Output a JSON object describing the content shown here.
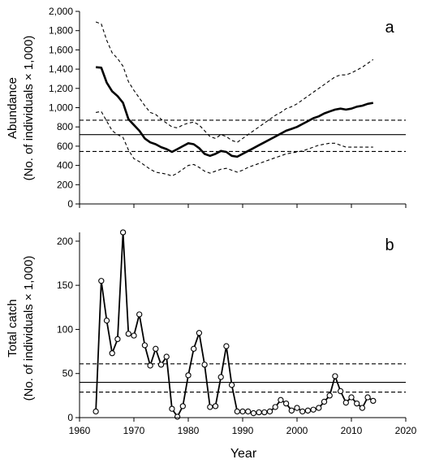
{
  "chart_data": [
    {
      "type": "line",
      "panel_label": "a",
      "ylabel_line1": "Abundance",
      "ylabel_line2": "(No. of individuals × 1,000)",
      "xlim": [
        1960,
        2020
      ],
      "ylim": [
        0,
        2000
      ],
      "yticks": [
        "0",
        "200",
        "400",
        "600",
        "800",
        "1,000",
        "1,200",
        "1,400",
        "1,600",
        "1,800",
        "2,000"
      ],
      "ytick_values": [
        0,
        200,
        400,
        600,
        800,
        1000,
        1200,
        1400,
        1600,
        1800,
        2000
      ],
      "reference_lines": [
        {
          "value": 870,
          "style": "dashed"
        },
        {
          "value": 720,
          "style": "solid"
        },
        {
          "value": 545,
          "style": "dashed"
        }
      ],
      "series": [
        {
          "style": "solid-bold",
          "x": [
            1963,
            1964,
            1965,
            1966,
            1967,
            1968,
            1969,
            1970,
            1971,
            1972,
            1973,
            1974,
            1975,
            1976,
            1977,
            1978,
            1979,
            1980,
            1981,
            1982,
            1983,
            1984,
            1985,
            1986,
            1987,
            1988,
            1989,
            1990,
            1991,
            1992,
            1993,
            1994,
            1995,
            1996,
            1997,
            1998,
            1999,
            2000,
            2001,
            2002,
            2003,
            2004,
            2005,
            2006,
            2007,
            2008,
            2009,
            2010,
            2011,
            2012,
            2013,
            2014
          ],
          "values": [
            1420,
            1415,
            1260,
            1170,
            1120,
            1050,
            880,
            820,
            760,
            680,
            640,
            620,
            590,
            570,
            540,
            570,
            600,
            630,
            620,
            580,
            520,
            500,
            520,
            550,
            540,
            500,
            490,
            520,
            550,
            580,
            610,
            640,
            670,
            700,
            730,
            760,
            780,
            800,
            830,
            860,
            890,
            910,
            940,
            960,
            980,
            990,
            980,
            990,
            1010,
            1020,
            1040,
            1050
          ]
        },
        {
          "style": "dashed-upper",
          "x": [
            1963,
            1964,
            1965,
            1966,
            1967,
            1968,
            1969,
            1970,
            1971,
            1972,
            1973,
            1974,
            1975,
            1976,
            1977,
            1978,
            1979,
            1980,
            1981,
            1982,
            1983,
            1984,
            1985,
            1986,
            1987,
            1988,
            1989,
            1990,
            1991,
            1992,
            1993,
            1994,
            1995,
            1996,
            1997,
            1998,
            1999,
            2000,
            2001,
            2002,
            2003,
            2004,
            2005,
            2006,
            2007,
            2008,
            2009,
            2010,
            2011,
            2012,
            2013,
            2014
          ],
          "values": [
            1890,
            1870,
            1700,
            1570,
            1510,
            1430,
            1270,
            1180,
            1100,
            1020,
            950,
            930,
            880,
            840,
            800,
            790,
            820,
            840,
            850,
            820,
            760,
            700,
            680,
            720,
            700,
            660,
            640,
            680,
            720,
            760,
            800,
            840,
            880,
            920,
            950,
            990,
            1010,
            1040,
            1080,
            1120,
            1160,
            1200,
            1240,
            1280,
            1320,
            1340,
            1340,
            1360,
            1390,
            1420,
            1460,
            1500
          ]
        },
        {
          "style": "dashed-lower",
          "x": [
            1963,
            1964,
            1965,
            1966,
            1967,
            1968,
            1969,
            1970,
            1971,
            1972,
            1973,
            1974,
            1975,
            1976,
            1977,
            1978,
            1979,
            1980,
            1981,
            1982,
            1983,
            1984,
            1985,
            1986,
            1987,
            1988,
            1989,
            1990,
            1991,
            1992,
            1993,
            1994,
            1995,
            1996,
            1997,
            1998,
            1999,
            2000,
            2001,
            2002,
            2003,
            2004,
            2005,
            2006,
            2007,
            2008,
            2009,
            2010,
            2011,
            2012,
            2013,
            2014
          ],
          "values": [
            950,
            960,
            860,
            760,
            720,
            690,
            560,
            470,
            440,
            400,
            360,
            330,
            320,
            310,
            290,
            320,
            360,
            400,
            410,
            380,
            340,
            320,
            340,
            360,
            370,
            350,
            330,
            350,
            380,
            400,
            420,
            440,
            460,
            480,
            500,
            520,
            530,
            540,
            550,
            570,
            590,
            610,
            620,
            630,
            630,
            610,
            590,
            590,
            590,
            590,
            590,
            590
          ]
        }
      ]
    },
    {
      "type": "line",
      "panel_label": "b",
      "ylabel_line1": "Total catch",
      "ylabel_line2": "(No. of individuals × 1,000)",
      "xlabel": "Year",
      "xlim": [
        1960,
        2020
      ],
      "ylim": [
        0,
        210
      ],
      "xticks": [
        "1960",
        "1970",
        "1980",
        "1990",
        "2000",
        "2010",
        "2020"
      ],
      "xtick_values": [
        1960,
        1970,
        1980,
        1990,
        2000,
        2010,
        2020
      ],
      "yticks": [
        "0",
        "50",
        "100",
        "150",
        "200"
      ],
      "ytick_values": [
        0,
        50,
        100,
        150,
        200
      ],
      "reference_lines": [
        {
          "value": 61,
          "style": "dashed"
        },
        {
          "value": 40,
          "style": "solid"
        },
        {
          "value": 29,
          "style": "dashed"
        }
      ],
      "series": [
        {
          "style": "solid-markers",
          "x": [
            1963,
            1964,
            1965,
            1966,
            1967,
            1968,
            1969,
            1970,
            1971,
            1972,
            1973,
            1974,
            1975,
            1976,
            1977,
            1978,
            1979,
            1980,
            1981,
            1982,
            1983,
            1984,
            1985,
            1986,
            1987,
            1988,
            1989,
            1990,
            1991,
            1992,
            1993,
            1994,
            1995,
            1996,
            1997,
            1998,
            1999,
            2000,
            2001,
            2002,
            2003,
            2004,
            2005,
            2006,
            2007,
            2008,
            2009,
            2010,
            2011,
            2012,
            2013,
            2014
          ],
          "values": [
            7,
            155,
            110,
            73,
            89,
            210,
            95,
            93,
            117,
            82,
            59,
            78,
            60,
            69,
            10,
            1,
            13,
            48,
            78,
            96,
            60,
            12,
            13,
            46,
            81,
            37,
            7,
            7,
            7,
            5,
            6,
            6,
            7,
            12,
            20,
            16,
            8,
            11,
            7,
            8,
            9,
            11,
            18,
            25,
            47,
            30,
            17,
            23,
            16,
            11,
            23,
            19
          ]
        }
      ]
    }
  ]
}
